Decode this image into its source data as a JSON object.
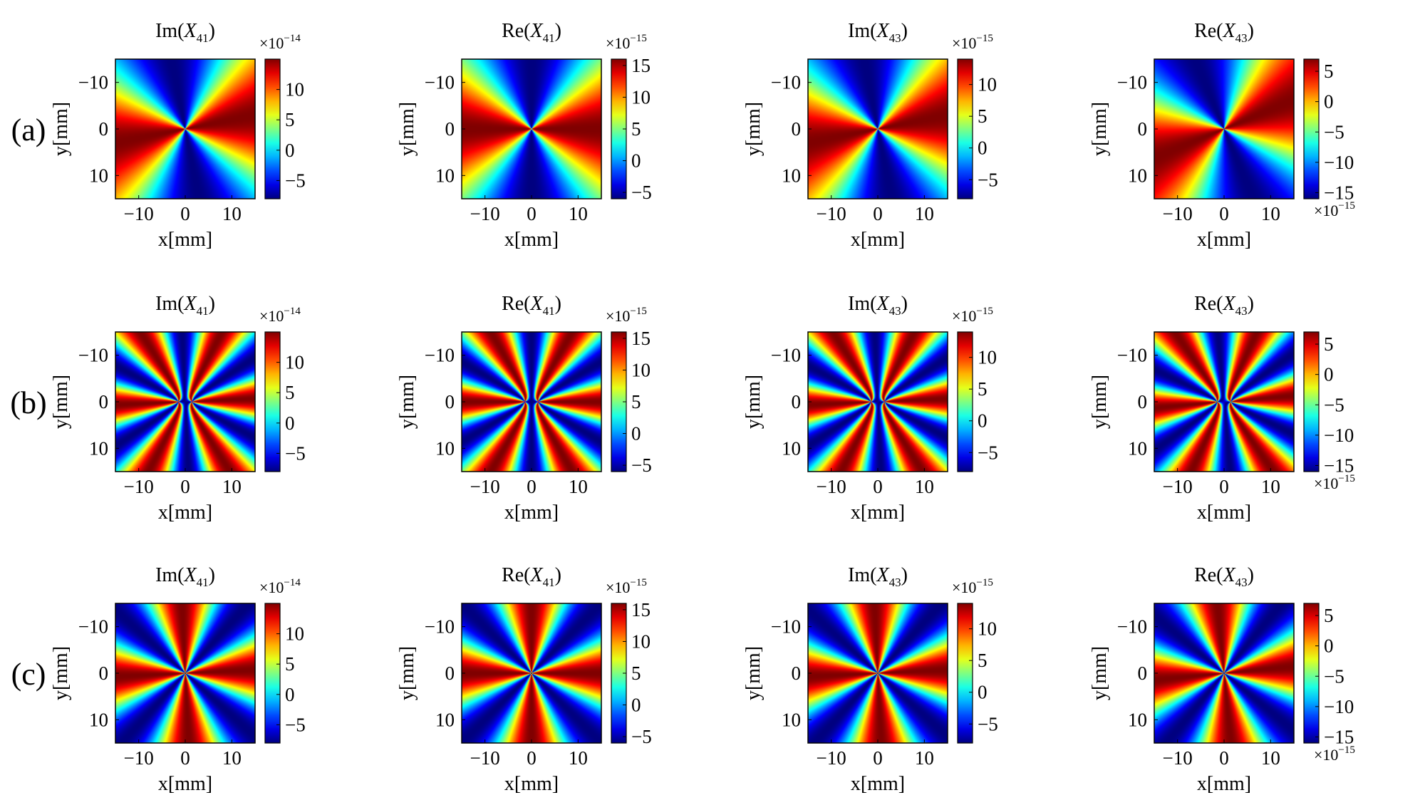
{
  "figure": {
    "row_labels": [
      "(a)",
      "(b)",
      "(c)"
    ]
  },
  "chart_data": {
    "type": "heatmap",
    "colormap": "jet",
    "xlabel": "x[mm]",
    "ylabel": "y[mm]",
    "x_ticks": [
      -10,
      0,
      10
    ],
    "y_ticks": [
      -10,
      0,
      10
    ],
    "xlim": [
      -15,
      15
    ],
    "ylim": [
      -15,
      15
    ],
    "rows": [
      {
        "label": "(a)",
        "petals": 4,
        "core_offset_mm": 0,
        "panels": [
          {
            "title_prefix": "Im(",
            "title_var": "X",
            "title_sub": "41",
            "title_suffix": ")",
            "exponent_label": "×10",
            "exponent": "−14",
            "exponent_position": "top",
            "clim": [
              -8,
              15
            ],
            "colorbar_ticks": [
              10,
              5,
              0,
              -5
            ],
            "colorbar_tick_labels": [
              "10",
              "5",
              "0",
              "−5"
            ],
            "phase_deg": 22
          },
          {
            "title_prefix": "Re(",
            "title_var": "X",
            "title_sub": "41",
            "title_suffix": ")",
            "exponent_label": "×10",
            "exponent": "−15",
            "exponent_position": "top",
            "clim": [
              -6,
              16
            ],
            "colorbar_ticks": [
              15,
              10,
              5,
              0,
              -5
            ],
            "colorbar_tick_labels": [
              "15",
              "10",
              "5",
              "0",
              "−5"
            ],
            "phase_deg": 0
          },
          {
            "title_prefix": "Im(",
            "title_var": "X",
            "title_sub": "43",
            "title_suffix": ")",
            "exponent_label": "×10",
            "exponent": "−15",
            "exponent_position": "top",
            "clim": [
              -8,
              14
            ],
            "colorbar_ticks": [
              10,
              5,
              0,
              -5
            ],
            "colorbar_tick_labels": [
              "10",
              "5",
              "0",
              "−5"
            ],
            "phase_deg": 22
          },
          {
            "title_prefix": "Re(",
            "title_var": "X",
            "title_sub": "43",
            "title_suffix": ")",
            "exponent_label": "×10",
            "exponent": "−15",
            "exponent_position": "bottom",
            "clim": [
              -16,
              7
            ],
            "colorbar_ticks": [
              5,
              0,
              -5,
              -10,
              -15
            ],
            "colorbar_tick_labels": [
              "5",
              "0",
              "−5",
              "−10",
              "−15"
            ],
            "phase_deg": 45
          }
        ]
      },
      {
        "label": "(b)",
        "petals": 6,
        "core_offset_mm": 1.5,
        "panels": [
          {
            "title_prefix": "Im(",
            "title_var": "X",
            "title_sub": "41",
            "title_suffix": ")",
            "exponent_label": "×10",
            "exponent": "−14",
            "exponent_position": "top",
            "clim": [
              -8,
              15
            ],
            "colorbar_ticks": [
              10,
              5,
              0,
              -5
            ],
            "colorbar_tick_labels": [
              "10",
              "5",
              "0",
              "−5"
            ],
            "phase_deg": 15
          },
          {
            "title_prefix": "Re(",
            "title_var": "X",
            "title_sub": "41",
            "title_suffix": ")",
            "exponent_label": "×10",
            "exponent": "−15",
            "exponent_position": "top",
            "clim": [
              -6,
              16
            ],
            "colorbar_ticks": [
              15,
              10,
              5,
              0,
              -5
            ],
            "colorbar_tick_labels": [
              "15",
              "10",
              "5",
              "0",
              "−5"
            ],
            "phase_deg": 0
          },
          {
            "title_prefix": "Im(",
            "title_var": "X",
            "title_sub": "43",
            "title_suffix": ")",
            "exponent_label": "×10",
            "exponent": "−15",
            "exponent_position": "top",
            "clim": [
              -8,
              14
            ],
            "colorbar_ticks": [
              10,
              5,
              0,
              -5
            ],
            "colorbar_tick_labels": [
              "10",
              "5",
              "0",
              "−5"
            ],
            "phase_deg": 15
          },
          {
            "title_prefix": "Re(",
            "title_var": "X",
            "title_sub": "43",
            "title_suffix": ")",
            "exponent_label": "×10",
            "exponent": "−15",
            "exponent_position": "bottom",
            "clim": [
              -16,
              7
            ],
            "colorbar_ticks": [
              5,
              0,
              -5,
              -10,
              -15
            ],
            "colorbar_tick_labels": [
              "5",
              "0",
              "−5",
              "−10",
              "−15"
            ],
            "phase_deg": 30
          }
        ]
      },
      {
        "label": "(c)",
        "petals": 8,
        "core_offset_mm": 0,
        "panels": [
          {
            "title_prefix": "Im(",
            "title_var": "X",
            "title_sub": "41",
            "title_suffix": ")",
            "exponent_label": "×10",
            "exponent": "−14",
            "exponent_position": "top",
            "clim": [
              -8,
              15
            ],
            "colorbar_ticks": [
              10,
              5,
              0,
              -5
            ],
            "colorbar_tick_labels": [
              "10",
              "5",
              "0",
              "−5"
            ],
            "phase_deg": 11
          },
          {
            "title_prefix": "Re(",
            "title_var": "X",
            "title_sub": "41",
            "title_suffix": ")",
            "exponent_label": "×10",
            "exponent": "−15",
            "exponent_position": "top",
            "clim": [
              -6,
              16
            ],
            "colorbar_ticks": [
              15,
              10,
              5,
              0,
              -5
            ],
            "colorbar_tick_labels": [
              "15",
              "10",
              "5",
              "0",
              "−5"
            ],
            "phase_deg": 0
          },
          {
            "title_prefix": "Im(",
            "title_var": "X",
            "title_sub": "43",
            "title_suffix": ")",
            "exponent_label": "×10",
            "exponent": "−15",
            "exponent_position": "top",
            "clim": [
              -8,
              14
            ],
            "colorbar_ticks": [
              10,
              5,
              0,
              -5
            ],
            "colorbar_tick_labels": [
              "10",
              "5",
              "0",
              "−5"
            ],
            "phase_deg": 11
          },
          {
            "title_prefix": "Re(",
            "title_var": "X",
            "title_sub": "43",
            "title_suffix": ")",
            "exponent_label": "×10",
            "exponent": "−15",
            "exponent_position": "bottom",
            "clim": [
              -16,
              7
            ],
            "colorbar_ticks": [
              5,
              0,
              -5,
              -10,
              -15
            ],
            "colorbar_tick_labels": [
              "5",
              "0",
              "−5",
              "−10",
              "−15"
            ],
            "phase_deg": 22
          }
        ]
      }
    ]
  }
}
